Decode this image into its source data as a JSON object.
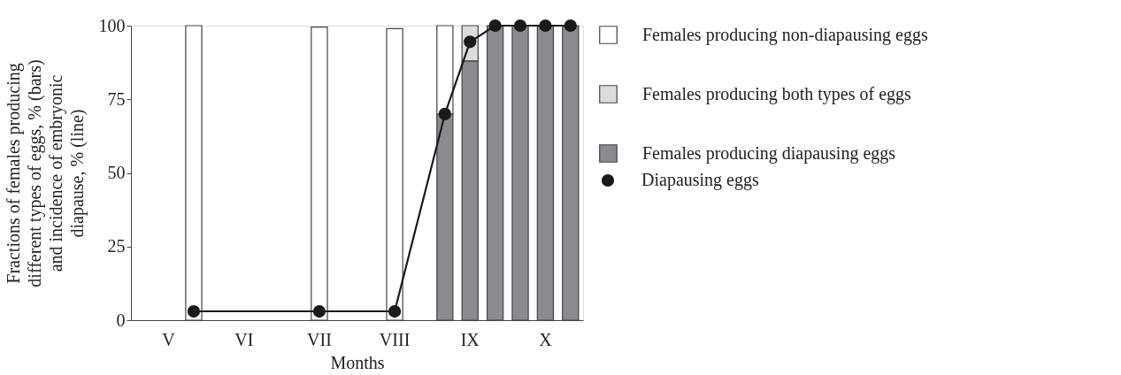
{
  "chart_data": {
    "type": "bar",
    "stacked": true,
    "xlabel": "Months",
    "ylabel": "Fractions of females producing\ndifferent types of eggs, % (bars)\nand incidence of embryonic\ndiapause, % (line)",
    "categories": [
      null,
      "V",
      null,
      null,
      "VI",
      null,
      null,
      "VII",
      null,
      null,
      "VIII",
      null,
      null,
      "IX",
      null,
      null,
      "X",
      null
    ],
    "ylim": [
      0,
      100
    ],
    "yticks": [
      0,
      25,
      50,
      75,
      100
    ],
    "grid": false,
    "legend": "right",
    "series": [
      {
        "name": "Females producing diapausing eggs",
        "color": "#8a8b8f",
        "values": [
          null,
          null,
          null,
          null,
          null,
          null,
          null,
          null,
          null,
          null,
          null,
          null,
          70,
          88,
          100,
          100,
          100,
          100
        ]
      },
      {
        "name": "Females producing both types of eggs",
        "color": "#dcdcdc",
        "values": [
          null,
          null,
          null,
          null,
          null,
          null,
          null,
          null,
          null,
          null,
          null,
          null,
          null,
          12,
          null,
          null,
          null,
          null
        ]
      },
      {
        "name": "Females producing non-diapausing eggs",
        "color": "#ffffff",
        "values": [
          null,
          null,
          100,
          null,
          null,
          null,
          null,
          99.5,
          null,
          null,
          99,
          null,
          30,
          null,
          null,
          null,
          null,
          null
        ]
      },
      {
        "name": "Diapausing eggs",
        "type": "line",
        "color": "#1a1a1a",
        "marker": "circle",
        "line_style": "solid",
        "values": [
          null,
          null,
          3,
          null,
          null,
          null,
          null,
          3,
          null,
          null,
          3,
          null,
          70,
          94.5,
          100,
          100,
          100,
          100
        ]
      }
    ]
  }
}
